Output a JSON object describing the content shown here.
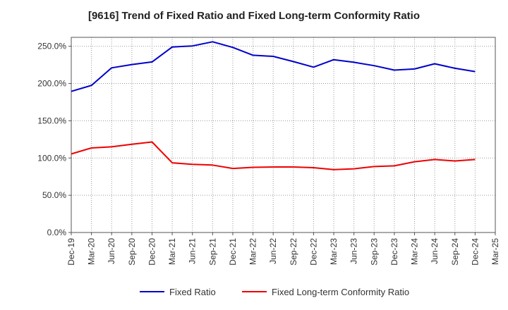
{
  "chart_data": {
    "type": "line",
    "title": "[9616]  Trend of Fixed Ratio and Fixed Long-term Conformity Ratio",
    "xlabel": "",
    "ylabel": "",
    "ylim": [
      0,
      262
    ],
    "grid": true,
    "legend_position": "bottom",
    "y_ticks": [
      {
        "value": 0,
        "label": "0.0%"
      },
      {
        "value": 50,
        "label": "50.0%"
      },
      {
        "value": 100,
        "label": "100.0%"
      },
      {
        "value": 150,
        "label": "150.0%"
      },
      {
        "value": 200,
        "label": "200.0%"
      },
      {
        "value": 250,
        "label": "250.0%"
      }
    ],
    "x_tick_labels": [
      "Dec-19",
      "Mar-20",
      "Jun-20",
      "Sep-20",
      "Dec-20",
      "Mar-21",
      "Jun-21",
      "Sep-21",
      "Dec-21",
      "Mar-22",
      "Jun-22",
      "Sep-22",
      "Dec-22",
      "Mar-23",
      "Jun-23",
      "Sep-23",
      "Dec-23",
      "Mar-24",
      "Jun-24",
      "Sep-24",
      "Dec-24",
      "Mar-25"
    ],
    "x": [
      "Dec-19",
      "Mar-20",
      "Jun-20",
      "Sep-20",
      "Dec-20",
      "Mar-21",
      "Jun-21",
      "Sep-21",
      "Dec-21",
      "Mar-22",
      "Jun-22",
      "Sep-22",
      "Dec-22",
      "Mar-23",
      "Jun-23",
      "Sep-23",
      "Dec-23",
      "Mar-24",
      "Jun-24",
      "Sep-24",
      "Dec-24"
    ],
    "series": [
      {
        "name": "Fixed Ratio",
        "color": "#0000cc",
        "values": [
          189.5,
          197.5,
          221,
          225.5,
          229,
          249,
          250.5,
          256,
          248.5,
          238,
          236.5,
          229.5,
          222,
          232,
          228.5,
          224,
          218,
          219.5,
          226.5,
          220.5,
          216
        ]
      },
      {
        "name": "Fixed Long-term Conformity Ratio",
        "color": "#ee0000",
        "values": [
          105.5,
          113.5,
          115,
          118.5,
          121.5,
          93.5,
          91.5,
          90.5,
          86,
          87.5,
          88,
          88,
          87,
          84.5,
          85.5,
          88.5,
          89.5,
          95,
          98,
          96,
          98
        ]
      }
    ]
  }
}
